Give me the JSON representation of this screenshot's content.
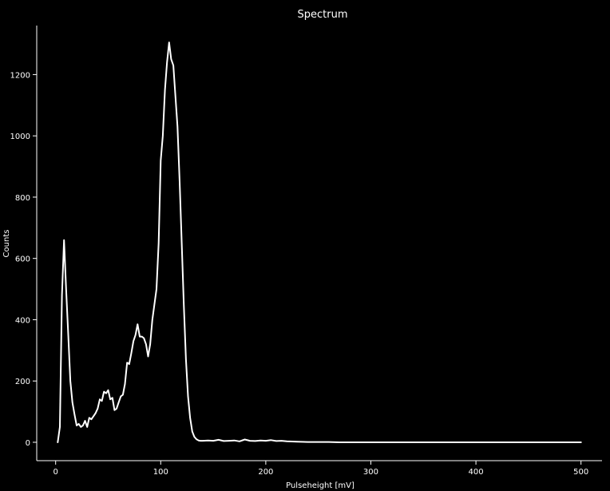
{
  "chart_data": {
    "type": "line",
    "title": "Spectrum",
    "xlabel": "Pulseheight [mV]",
    "ylabel": "Counts",
    "xlim": [
      -18,
      520
    ],
    "ylim": [
      -60,
      1360
    ],
    "x_ticks": [
      0,
      100,
      200,
      300,
      400,
      500
    ],
    "y_ticks": [
      0,
      200,
      400,
      600,
      800,
      1000,
      1200
    ],
    "grid": false,
    "legend": "none",
    "colors": {
      "background": "#000000",
      "foreground": "#ffffff",
      "line": "#ffffff"
    },
    "series": [
      {
        "x": [
          2,
          4,
          6,
          8,
          10,
          12,
          14,
          16,
          18,
          20,
          22,
          24,
          26,
          28,
          30,
          32,
          34,
          36,
          38,
          40,
          42,
          44,
          46,
          48,
          50,
          52,
          54,
          56,
          58,
          60,
          62,
          64,
          66,
          68,
          70,
          72,
          74,
          76,
          78,
          80,
          82,
          84,
          86,
          88,
          90,
          92,
          94,
          96,
          98,
          100,
          102,
          104,
          106,
          108,
          110,
          112,
          114,
          116,
          118,
          120,
          122,
          124,
          126,
          128,
          130,
          132,
          134,
          136,
          138,
          140,
          145,
          150,
          155,
          160,
          165,
          170,
          175,
          180,
          185,
          190,
          195,
          200,
          205,
          210,
          215,
          220,
          230,
          240,
          250,
          260,
          270,
          280,
          300,
          350,
          400,
          450,
          500
        ],
        "y": [
          0,
          50,
          480,
          660,
          500,
          350,
          200,
          130,
          90,
          55,
          60,
          50,
          55,
          70,
          50,
          80,
          75,
          85,
          95,
          110,
          140,
          135,
          165,
          160,
          170,
          140,
          145,
          105,
          110,
          130,
          150,
          155,
          190,
          260,
          255,
          290,
          330,
          350,
          385,
          345,
          345,
          340,
          320,
          280,
          320,
          400,
          450,
          500,
          650,
          920,
          1000,
          1150,
          1240,
          1305,
          1250,
          1230,
          1130,
          1030,
          850,
          650,
          450,
          270,
          150,
          80,
          35,
          18,
          10,
          6,
          5,
          5,
          6,
          5,
          8,
          4,
          5,
          6,
          3,
          9,
          5,
          4,
          6,
          5,
          7,
          4,
          5,
          3,
          2,
          1,
          1,
          1,
          0,
          0,
          0,
          0,
          0,
          0,
          0
        ]
      }
    ]
  }
}
